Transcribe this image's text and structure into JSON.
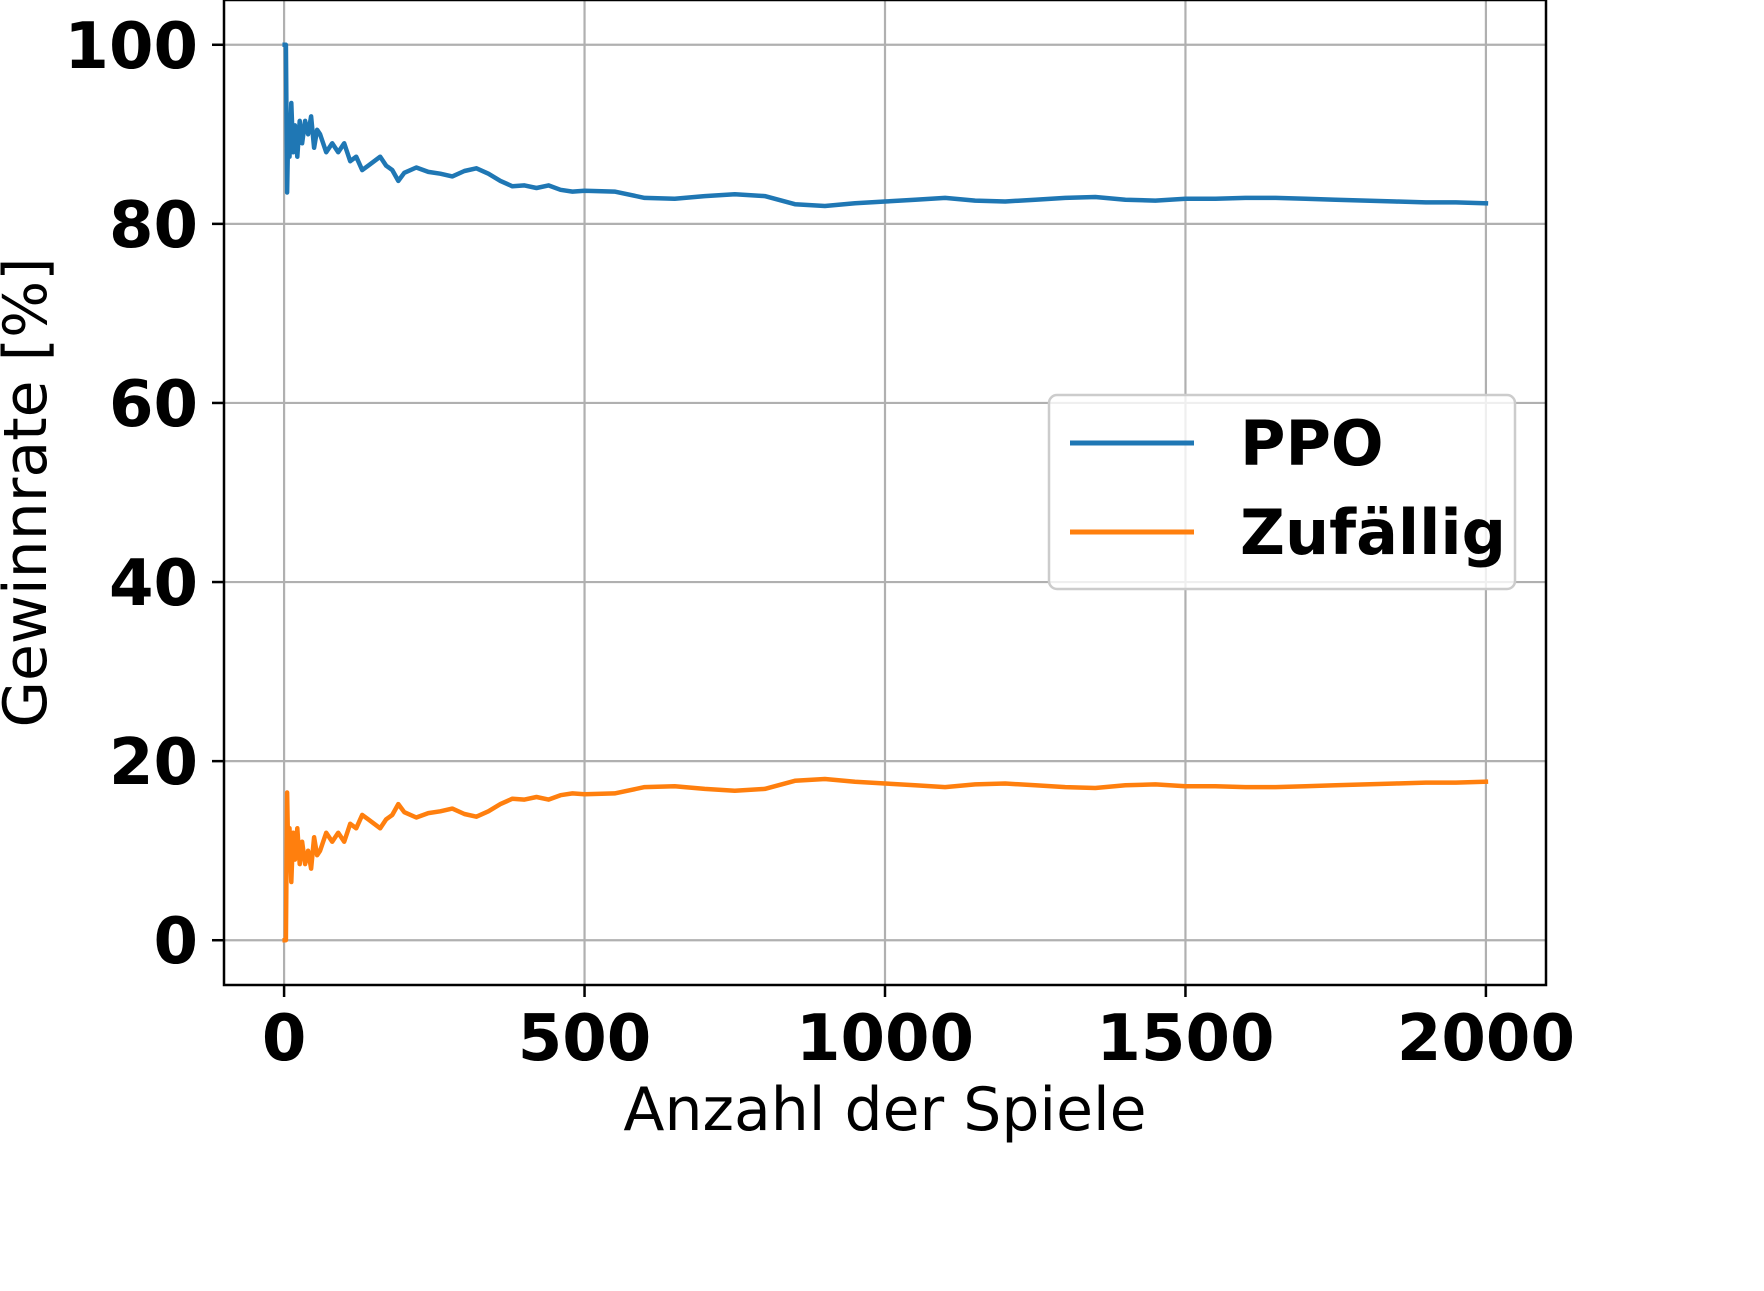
{
  "chart_data": {
    "type": "line",
    "title": "",
    "xlabel": "Anzahl der Spiele",
    "ylabel": "Gewinnrate [%]",
    "xlim": [
      -100,
      2100
    ],
    "ylim": [
      -5,
      105
    ],
    "x_ticks": [
      0,
      500,
      1000,
      1500,
      2000
    ],
    "y_ticks": [
      0,
      20,
      40,
      60,
      80,
      100
    ],
    "grid": true,
    "legend": {
      "position": "center-right"
    },
    "series": [
      {
        "name": "PPO",
        "color": "#1f77b4",
        "x": [
          1,
          3,
          5,
          7,
          9,
          12,
          15,
          18,
          22,
          26,
          30,
          35,
          40,
          45,
          50,
          55,
          60,
          70,
          80,
          90,
          100,
          110,
          120,
          130,
          140,
          150,
          160,
          170,
          180,
          190,
          200,
          220,
          240,
          260,
          280,
          300,
          320,
          340,
          360,
          380,
          400,
          420,
          440,
          460,
          480,
          500,
          550,
          600,
          650,
          700,
          750,
          800,
          850,
          900,
          950,
          1000,
          1050,
          1100,
          1150,
          1200,
          1250,
          1300,
          1350,
          1400,
          1450,
          1500,
          1550,
          1600,
          1650,
          1700,
          1750,
          1800,
          1850,
          1900,
          1950,
          2000
        ],
        "values": [
          100,
          100,
          83.5,
          91,
          87.5,
          93.5,
          88,
          91,
          87.5,
          91.5,
          89,
          91.5,
          90,
          92,
          88.5,
          90.5,
          90,
          88,
          89,
          88,
          89,
          87,
          87.5,
          86,
          86.5,
          87,
          87.5,
          86.5,
          86,
          84.8,
          85.7,
          86.3,
          85.8,
          85.6,
          85.3,
          85.9,
          86.2,
          85.6,
          84.8,
          84.2,
          84.3,
          84.0,
          84.3,
          83.8,
          83.6,
          83.7,
          83.6,
          82.9,
          82.8,
          83.1,
          83.3,
          83.1,
          82.2,
          82.0,
          82.3,
          82.5,
          82.7,
          82.9,
          82.6,
          82.5,
          82.7,
          82.9,
          83.0,
          82.7,
          82.6,
          82.8,
          82.8,
          82.9,
          82.9,
          82.8,
          82.7,
          82.6,
          82.5,
          82.4,
          82.4,
          82.3
        ]
      },
      {
        "name": "Zufällig",
        "color": "#ff7f0e",
        "x": [
          1,
          3,
          5,
          7,
          9,
          12,
          15,
          18,
          22,
          26,
          30,
          35,
          40,
          45,
          50,
          55,
          60,
          70,
          80,
          90,
          100,
          110,
          120,
          130,
          140,
          150,
          160,
          170,
          180,
          190,
          200,
          220,
          240,
          260,
          280,
          300,
          320,
          340,
          360,
          380,
          400,
          420,
          440,
          460,
          480,
          500,
          550,
          600,
          650,
          700,
          750,
          800,
          850,
          900,
          950,
          1000,
          1050,
          1100,
          1150,
          1200,
          1250,
          1300,
          1350,
          1400,
          1450,
          1500,
          1550,
          1600,
          1650,
          1700,
          1750,
          1800,
          1850,
          1900,
          1950,
          2000
        ],
        "values": [
          0,
          0,
          16.5,
          9,
          12.5,
          6.5,
          12,
          9,
          12.5,
          8.5,
          11,
          8.5,
          10,
          8,
          11.5,
          9.5,
          10,
          12,
          11,
          12,
          11,
          13,
          12.5,
          14,
          13.5,
          13,
          12.5,
          13.5,
          14,
          15.2,
          14.3,
          13.7,
          14.2,
          14.4,
          14.7,
          14.1,
          13.8,
          14.4,
          15.2,
          15.8,
          15.7,
          16.0,
          15.7,
          16.2,
          16.4,
          16.3,
          16.4,
          17.1,
          17.2,
          16.9,
          16.7,
          16.9,
          17.8,
          18.0,
          17.7,
          17.5,
          17.3,
          17.1,
          17.4,
          17.5,
          17.3,
          17.1,
          17.0,
          17.3,
          17.4,
          17.2,
          17.2,
          17.1,
          17.1,
          17.2,
          17.3,
          17.4,
          17.5,
          17.6,
          17.6,
          17.7
        ]
      }
    ]
  }
}
